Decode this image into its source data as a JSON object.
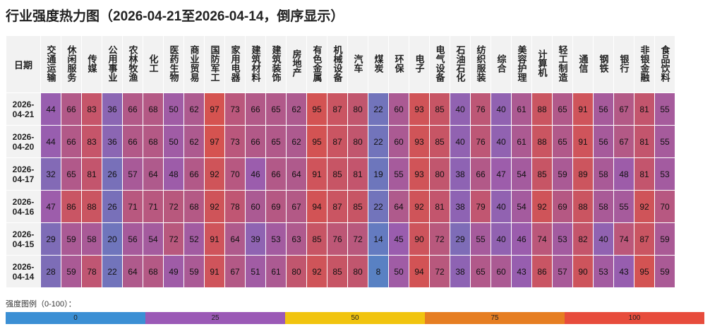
{
  "title": "行业强度热力图（2026-04-21至2026-04-14，倒序显示）",
  "legend": {
    "title": "强度图例（0-100）：",
    "stops": [
      {
        "label": "0",
        "color": "#3b8fd4"
      },
      {
        "label": "25",
        "color": "#9b59b6"
      },
      {
        "label": "50",
        "color": "#f1c40f"
      },
      {
        "label": "75",
        "color": "#e67e22"
      },
      {
        "label": "100",
        "color": "#e74c3c"
      }
    ]
  },
  "chart_data": {
    "type": "heatmap",
    "title": "行业强度热力图（2026-04-21至2026-04-14，倒序显示）",
    "row_header": "日期",
    "columns": [
      "交通运输",
      "休闲服务",
      "传媒",
      "公用事业",
      "农林牧渔",
      "化工",
      "医药生物",
      "商业贸易",
      "国防军工",
      "家用电器",
      "建筑材料",
      "建筑装饰",
      "房地产",
      "有色金属",
      "机械设备",
      "汽车",
      "煤炭",
      "环保",
      "电子",
      "电气设备",
      "石油石化",
      "纺织服装",
      "综合",
      "美容护理",
      "计算机",
      "轻工制造",
      "通信",
      "钢铁",
      "银行",
      "非银金融",
      "食品饮料"
    ],
    "rows": [
      "2026-04-21",
      "2026-04-20",
      "2026-04-17",
      "2026-04-16",
      "2026-04-15",
      "2026-04-14"
    ],
    "values": [
      [
        44,
        66,
        83,
        36,
        66,
        68,
        50,
        62,
        97,
        73,
        66,
        65,
        62,
        95,
        87,
        80,
        22,
        60,
        93,
        85,
        40,
        76,
        40,
        61,
        88,
        65,
        91,
        56,
        67,
        81,
        55
      ],
      [
        44,
        66,
        83,
        36,
        66,
        68,
        50,
        62,
        97,
        73,
        66,
        65,
        62,
        95,
        87,
        80,
        22,
        60,
        93,
        85,
        40,
        76,
        40,
        61,
        88,
        65,
        91,
        56,
        67,
        81,
        55
      ],
      [
        32,
        65,
        81,
        26,
        57,
        64,
        48,
        66,
        92,
        70,
        46,
        66,
        64,
        91,
        85,
        81,
        19,
        55,
        93,
        80,
        38,
        66,
        47,
        54,
        85,
        59,
        89,
        58,
        48,
        81,
        53
      ],
      [
        47,
        86,
        88,
        26,
        71,
        71,
        72,
        68,
        92,
        78,
        60,
        69,
        67,
        94,
        87,
        85,
        22,
        64,
        92,
        81,
        38,
        79,
        40,
        54,
        92,
        69,
        88,
        58,
        55,
        92,
        70
      ],
      [
        29,
        59,
        58,
        20,
        56,
        54,
        72,
        52,
        91,
        64,
        39,
        53,
        63,
        85,
        76,
        72,
        14,
        45,
        90,
        72,
        29,
        55,
        40,
        46,
        74,
        53,
        82,
        40,
        74,
        87,
        59
      ],
      [
        28,
        59,
        78,
        22,
        64,
        68,
        49,
        59,
        91,
        67,
        51,
        61,
        80,
        92,
        85,
        80,
        8,
        50,
        94,
        72,
        38,
        65,
        60,
        43,
        86,
        57,
        90,
        53,
        43,
        95,
        59
      ]
    ],
    "range": [
      0,
      100
    ]
  }
}
